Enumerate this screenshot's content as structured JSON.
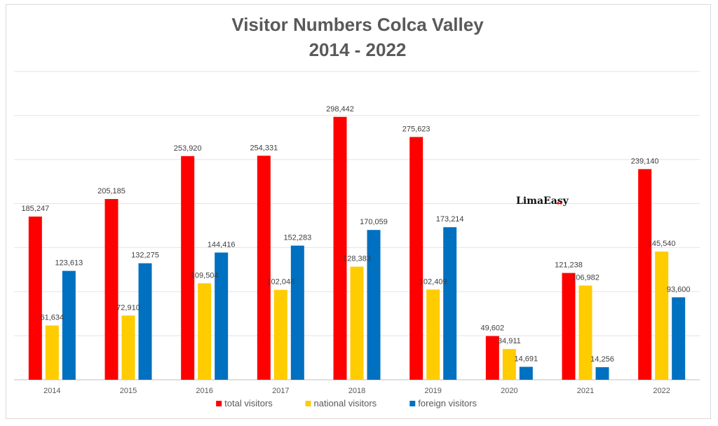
{
  "chart_data": {
    "type": "bar",
    "title": "Visitor Numbers Colca Valley",
    "subtitle": "2014 - 2022",
    "categories": [
      "2014",
      "2015",
      "2016",
      "2017",
      "2018",
      "2019",
      "2020",
      "2021",
      "2022"
    ],
    "series": [
      {
        "name": "total visitors",
        "color": "#ff0000",
        "values": [
          185247,
          205185,
          253920,
          254331,
          298442,
          275623,
          49602,
          121238,
          239140
        ],
        "labels": [
          "185,247",
          "205,185",
          "253,920",
          "254,331",
          "298,442",
          "275,623",
          "49,602",
          "121,238",
          "239,140"
        ]
      },
      {
        "name": "national visitors",
        "color": "#ffcc00",
        "values": [
          61634,
          72910,
          109504,
          102048,
          128383,
          102409,
          34911,
          106982,
          145540
        ],
        "labels": [
          "61,634",
          "72,910",
          "109,504",
          "102,048",
          "128,383",
          "102,409",
          "34,911",
          "106,982",
          "145,540"
        ]
      },
      {
        "name": "foreign visitors",
        "color": "#0070c0",
        "values": [
          123613,
          132275,
          144416,
          152283,
          170059,
          173214,
          14691,
          14256,
          93600
        ],
        "labels": [
          "123,613",
          "132,275",
          "144,416",
          "152,283",
          "170,059",
          "173,214",
          "14,691",
          "14,256",
          "93,600"
        ]
      }
    ],
    "xlabel": "",
    "ylabel": "",
    "ylim": [
      0,
      350000
    ],
    "grid": true,
    "legend": "bottom"
  },
  "logo": {
    "text": "LimaEasy",
    "icon": "limaeasy-logo"
  }
}
